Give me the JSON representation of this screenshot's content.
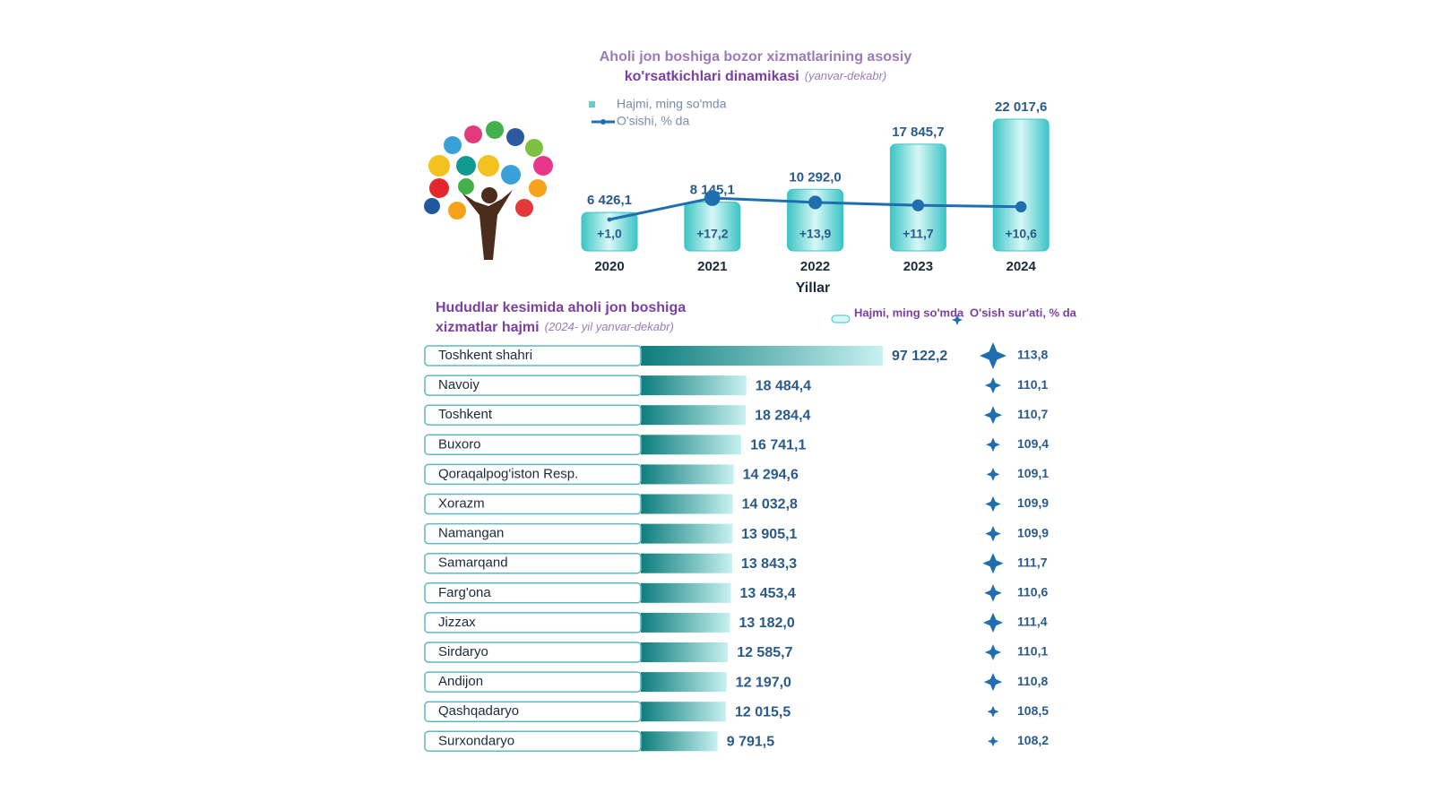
{
  "chart_data": [
    {
      "type": "bar-line",
      "title": "Aholi jon boshiga bozor xizmatlarining asosiy",
      "title_line2": "ko'rsatkichlari dinamikasi",
      "subtitle": "(yanvar-dekabr)",
      "x_label": "Yillar",
      "categories": [
        "2020",
        "2021",
        "2022",
        "2023",
        "2024"
      ],
      "series": [
        {
          "name": "Hajmi, ming so'mda",
          "color": "#5fd0d0",
          "values": [
            6426.1,
            8145.1,
            10292.0,
            17845.7,
            22017.6
          ],
          "value_labels": [
            "6 426,1",
            "8 145,1",
            "10 292,0",
            "17 845,7",
            "22 017,6"
          ]
        },
        {
          "name": "O'sishi, % da",
          "color": "#1f6fb0",
          "values": [
            1.0,
            17.2,
            13.9,
            11.7,
            10.6
          ],
          "value_labels": [
            "+1,0",
            "+17,2",
            "+13,9",
            "+11,7",
            "+10,6"
          ]
        }
      ]
    },
    {
      "type": "hbar",
      "title": "Hududlar kesimida aholi jon boshiga",
      "title_line2": "xizmatlar hajmi",
      "subtitle": "(2024- yil yanvar-dekabr)",
      "categories": [
        "Toshkent  shahri",
        "Navoiy",
        "Toshkent",
        "Buxoro",
        "Qoraqalpog'iston Resp.",
        "Xorazm",
        "Namangan",
        "Samarqand",
        "Farg'ona",
        "Jizzax",
        "Sirdaryo",
        "Andijon",
        "Qashqadaryo",
        "Surxondaryo"
      ],
      "series": [
        {
          "name": "Hajmi, ming so'mda",
          "color": "#13918f",
          "values": [
            97122.2,
            18484.4,
            18284.4,
            16741.1,
            14294.6,
            14032.8,
            13905.1,
            13843.3,
            13453.4,
            13182.0,
            12585.7,
            12197.0,
            12015.5,
            9791.5
          ],
          "value_labels": [
            "97 122,2",
            "18 484,4",
            "18 284,4",
            "16 741,1",
            "14 294,6",
            "14 032,8",
            "13 905,1",
            "13 843,3",
            "13 453,4",
            "13 182,0",
            "12 585,7",
            "12 197,0",
            "12 015,5",
            "9 791,5"
          ]
        },
        {
          "name": "O'sish sur'ati, % da",
          "color": "#1f6fb0",
          "values": [
            113.8,
            110.1,
            110.7,
            109.4,
            109.1,
            109.9,
            109.9,
            111.7,
            110.6,
            111.4,
            110.1,
            110.8,
            108.5,
            108.2
          ],
          "value_labels": [
            "113,8",
            "110,1",
            "110,7",
            "109,4",
            "109,1",
            "109,9",
            "109,9",
            "111,7",
            "110,6",
            "111,4",
            "110,1",
            "110,8",
            "108,5",
            "108,2"
          ]
        }
      ]
    }
  ]
}
